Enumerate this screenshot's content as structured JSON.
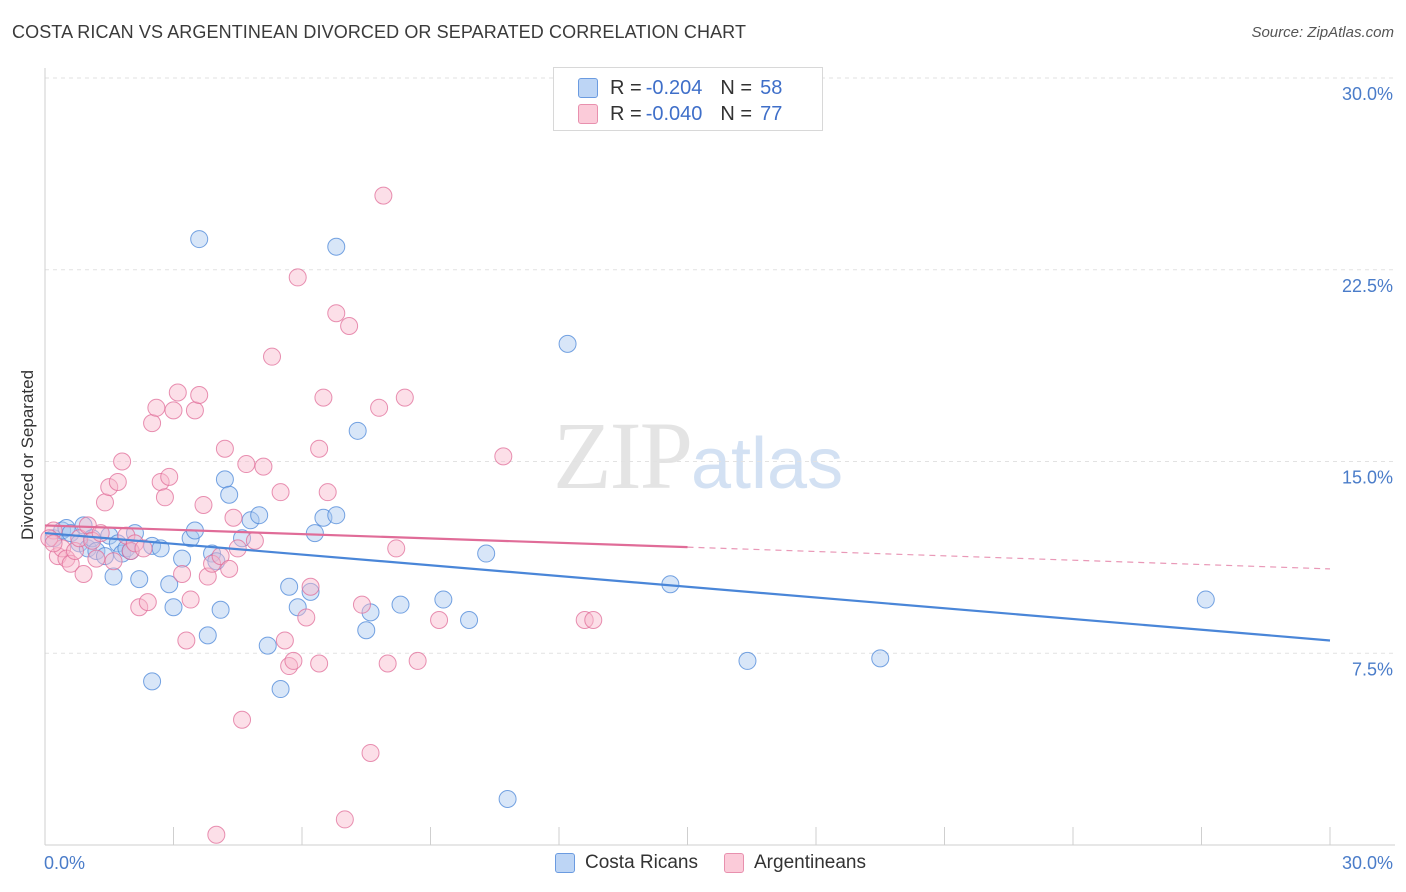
{
  "title": "COSTA RICAN VS ARGENTINEAN DIVORCED OR SEPARATED CORRELATION CHART",
  "source": "Source: ZipAtlas.com",
  "watermark": {
    "zip": "ZIP",
    "atlas": "atlas"
  },
  "legend": {
    "rows": [
      {
        "r_label": "R =",
        "r_value": "-0.204",
        "n_label": "N =",
        "n_value": "58",
        "color": "#a8c8f0"
      },
      {
        "r_label": "R =",
        "r_value": "-0.040",
        "n_label": "N =",
        "n_value": "77",
        "color": "#f8b8cc"
      }
    ]
  },
  "bottom_legend": [
    {
      "label": "Costa Ricans",
      "color": "#a8c8f0"
    },
    {
      "label": "Argentineans",
      "color": "#f8b8cc"
    }
  ],
  "chart_data": {
    "type": "scatter",
    "title": "COSTA RICAN VS ARGENTINEAN DIVORCED OR SEPARATED CORRELATION CHART",
    "xlabel": "",
    "ylabel": "Divorced or Separated",
    "xlim": [
      0,
      30
    ],
    "ylim": [
      0,
      30
    ],
    "x_tick_labels": [
      "0.0%",
      "30.0%"
    ],
    "y_ticks": [
      7.5,
      15.0,
      22.5,
      30.0
    ],
    "y_tick_labels": [
      "7.5%",
      "15.0%",
      "22.5%",
      "30.0%"
    ],
    "grid": true,
    "legend_position": "top-center",
    "series": [
      {
        "name": "Costa Ricans",
        "color": "#4a86d8",
        "fill": "#a8c8f0",
        "trend": {
          "x": [
            0,
            30
          ],
          "y": [
            12.2,
            8.0
          ],
          "dashed_from": null
        },
        "points": [
          [
            0.2,
            12.0
          ],
          [
            0.4,
            12.3
          ],
          [
            0.5,
            12.4
          ],
          [
            0.6,
            12.2
          ],
          [
            0.8,
            11.8
          ],
          [
            0.9,
            12.5
          ],
          [
            1.0,
            11.6
          ],
          [
            1.1,
            12.0
          ],
          [
            1.2,
            11.5
          ],
          [
            1.4,
            11.3
          ],
          [
            1.5,
            12.1
          ],
          [
            1.6,
            10.5
          ],
          [
            1.7,
            11.8
          ],
          [
            1.8,
            11.4
          ],
          [
            1.9,
            11.6
          ],
          [
            2.0,
            11.5
          ],
          [
            2.1,
            12.2
          ],
          [
            2.2,
            10.4
          ],
          [
            2.5,
            11.7
          ],
          [
            2.7,
            11.6
          ],
          [
            2.9,
            10.2
          ],
          [
            3.0,
            9.3
          ],
          [
            3.2,
            11.2
          ],
          [
            3.4,
            12.0
          ],
          [
            3.5,
            12.3
          ],
          [
            3.8,
            8.2
          ],
          [
            3.9,
            11.4
          ],
          [
            4.0,
            11.1
          ],
          [
            4.1,
            9.2
          ],
          [
            4.2,
            14.3
          ],
          [
            4.3,
            13.7
          ],
          [
            4.6,
            12.0
          ],
          [
            4.8,
            12.7
          ],
          [
            5.0,
            12.9
          ],
          [
            5.2,
            7.8
          ],
          [
            5.5,
            6.1
          ],
          [
            5.7,
            10.1
          ],
          [
            5.9,
            9.3
          ],
          [
            6.2,
            9.9
          ],
          [
            6.3,
            12.2
          ],
          [
            6.5,
            12.8
          ],
          [
            6.8,
            12.9
          ],
          [
            7.3,
            16.2
          ],
          [
            7.5,
            8.4
          ],
          [
            7.6,
            9.1
          ],
          [
            8.3,
            9.4
          ],
          [
            9.3,
            9.6
          ],
          [
            9.9,
            8.8
          ],
          [
            10.3,
            11.4
          ],
          [
            10.8,
            1.8
          ],
          [
            3.6,
            23.7
          ],
          [
            6.8,
            23.4
          ],
          [
            12.2,
            19.6
          ],
          [
            14.6,
            10.2
          ],
          [
            16.4,
            7.2
          ],
          [
            19.5,
            7.3
          ],
          [
            27.1,
            9.6
          ],
          [
            2.5,
            6.4
          ]
        ]
      },
      {
        "name": "Argentineans",
        "color": "#e06c98",
        "fill": "#f8b8cc",
        "trend": {
          "x": [
            0,
            30
          ],
          "y": [
            12.5,
            10.8
          ],
          "dashed_from": 15.0
        },
        "points": [
          [
            0.2,
            12.3
          ],
          [
            0.3,
            11.3
          ],
          [
            0.4,
            11.6
          ],
          [
            0.5,
            11.2
          ],
          [
            0.6,
            11.0
          ],
          [
            0.7,
            11.5
          ],
          [
            0.8,
            12.0
          ],
          [
            0.9,
            10.6
          ],
          [
            1.0,
            12.5
          ],
          [
            1.1,
            11.9
          ],
          [
            1.2,
            11.2
          ],
          [
            1.3,
            12.2
          ],
          [
            1.4,
            13.4
          ],
          [
            1.5,
            14.0
          ],
          [
            1.6,
            11.1
          ],
          [
            1.7,
            14.2
          ],
          [
            1.8,
            15.0
          ],
          [
            1.9,
            12.1
          ],
          [
            2.0,
            11.5
          ],
          [
            2.1,
            11.8
          ],
          [
            2.2,
            9.3
          ],
          [
            2.3,
            11.6
          ],
          [
            2.4,
            9.5
          ],
          [
            2.5,
            16.5
          ],
          [
            2.6,
            17.1
          ],
          [
            2.7,
            14.2
          ],
          [
            2.8,
            13.6
          ],
          [
            2.9,
            14.4
          ],
          [
            3.0,
            17.0
          ],
          [
            3.1,
            17.7
          ],
          [
            3.2,
            10.6
          ],
          [
            3.3,
            8.0
          ],
          [
            3.4,
            9.6
          ],
          [
            3.5,
            17.0
          ],
          [
            3.6,
            17.6
          ],
          [
            3.7,
            13.3
          ],
          [
            3.8,
            10.5
          ],
          [
            3.9,
            11.0
          ],
          [
            4.0,
            0.4
          ],
          [
            4.1,
            11.3
          ],
          [
            4.2,
            15.5
          ],
          [
            4.3,
            10.8
          ],
          [
            4.4,
            12.8
          ],
          [
            4.5,
            11.6
          ],
          [
            4.6,
            4.9
          ],
          [
            4.7,
            14.9
          ],
          [
            4.9,
            11.9
          ],
          [
            5.1,
            14.8
          ],
          [
            5.3,
            19.1
          ],
          [
            5.5,
            13.8
          ],
          [
            5.6,
            8.0
          ],
          [
            5.7,
            7.0
          ],
          [
            5.8,
            7.2
          ],
          [
            5.9,
            22.2
          ],
          [
            6.1,
            8.9
          ],
          [
            6.2,
            10.1
          ],
          [
            6.4,
            7.1
          ],
          [
            6.4,
            15.5
          ],
          [
            6.5,
            17.5
          ],
          [
            6.6,
            13.8
          ],
          [
            6.8,
            20.8
          ],
          [
            7.0,
            1.0
          ],
          [
            7.1,
            20.3
          ],
          [
            7.4,
            9.4
          ],
          [
            7.6,
            3.6
          ],
          [
            7.8,
            17.1
          ],
          [
            7.9,
            25.4
          ],
          [
            8.0,
            7.1
          ],
          [
            8.2,
            11.6
          ],
          [
            8.4,
            17.5
          ],
          [
            8.7,
            7.2
          ],
          [
            9.2,
            8.8
          ],
          [
            10.7,
            15.2
          ],
          [
            12.6,
            8.8
          ],
          [
            12.8,
            8.8
          ],
          [
            0.1,
            12.0
          ],
          [
            0.2,
            11.8
          ]
        ]
      }
    ]
  }
}
